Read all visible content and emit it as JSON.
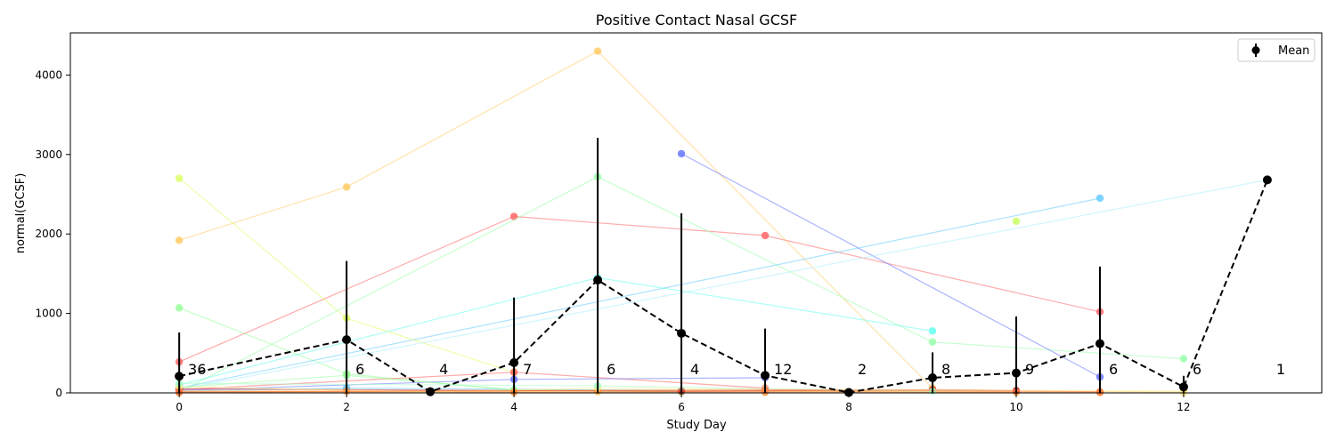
{
  "chart_data": {
    "type": "line",
    "title": "Positive Contact Nasal GCSF",
    "xlabel": "Study Day",
    "ylabel": "normal(GCSF)",
    "xlim": [
      -1.3,
      13.65
    ],
    "ylim": [
      0,
      4530
    ],
    "xticks": [
      0,
      2,
      4,
      6,
      8,
      10,
      12
    ],
    "yticks": [
      0,
      1000,
      2000,
      3000,
      4000
    ],
    "grid": false,
    "legend": {
      "position": "top-right",
      "entries": [
        "Mean"
      ]
    },
    "mean_series": {
      "name": "Mean",
      "color": "#000000",
      "x": [
        0,
        2,
        3,
        4,
        5,
        6,
        7,
        8,
        9,
        10,
        11,
        12,
        13
      ],
      "y": [
        210,
        670,
        15,
        380,
        1420,
        750,
        220,
        5,
        190,
        250,
        620,
        75,
        2680
      ],
      "err": [
        550,
        990,
        0,
        820,
        1790,
        1510,
        590,
        0,
        320,
        710,
        970,
        140,
        0
      ],
      "counts": [
        "36",
        "6",
        "4",
        "7",
        "6",
        "4",
        "12",
        "2",
        "8",
        "9",
        "6",
        "6",
        "1"
      ]
    },
    "subject_series": [
      {
        "color": "#ff6666",
        "x": [
          0,
          4,
          7,
          11
        ],
        "y": [
          390,
          2220,
          1980,
          1020
        ]
      },
      {
        "color": "#ffcc66",
        "x": [
          0,
          2,
          5,
          9
        ],
        "y": [
          1920,
          2590,
          4300,
          60
        ]
      },
      {
        "color": "#99ff99",
        "x": [
          0,
          2,
          4
        ],
        "y": [
          1070,
          240,
          30
        ]
      },
      {
        "color": "#99ffaa",
        "x": [
          0,
          5,
          9,
          12
        ],
        "y": [
          10,
          2720,
          640,
          430
        ]
      },
      {
        "color": "#6677ff",
        "x": [
          6,
          11
        ],
        "y": [
          3010,
          200
        ]
      },
      {
        "color": "#66ccff",
        "x": [
          0,
          11
        ],
        "y": [
          60,
          2450
        ]
      },
      {
        "color": "#66ffee",
        "x": [
          0,
          5,
          9
        ],
        "y": [
          100,
          1450,
          780
        ]
      },
      {
        "color": "#ddff66",
        "x": [
          0,
          2,
          4
        ],
        "y": [
          2700,
          940,
          260
        ]
      },
      {
        "color": "#aaeeff",
        "x": [
          0,
          13
        ],
        "y": [
          40,
          2680
        ]
      },
      {
        "color": "#ccff66",
        "x": [
          10
        ],
        "y": [
          2160
        ]
      },
      {
        "color": "#ff6666",
        "x": [
          0,
          4,
          7
        ],
        "y": [
          40,
          260,
          60
        ]
      },
      {
        "color": "#6677ff",
        "x": [
          0,
          4,
          7
        ],
        "y": [
          30,
          170,
          190
        ]
      },
      {
        "color": "#66ccff",
        "x": [
          0,
          2,
          6
        ],
        "y": [
          20,
          60,
          30
        ]
      },
      {
        "color": "#99ff99",
        "x": [
          0,
          2,
          4,
          6
        ],
        "y": [
          70,
          220,
          40,
          10
        ]
      },
      {
        "color": "#ffcc66",
        "x": [
          0,
          5,
          9,
          12
        ],
        "y": [
          25,
          15,
          30,
          10
        ]
      },
      {
        "color": "#ff8833",
        "x": [
          0,
          4,
          7,
          11
        ],
        "y": [
          15,
          10,
          10,
          5
        ]
      },
      {
        "color": "#ff9933",
        "x": [
          0,
          2,
          5,
          10
        ],
        "y": [
          5,
          20,
          30,
          10
        ]
      },
      {
        "color": "#cc3333",
        "x": [
          0,
          6,
          9,
          10
        ],
        "y": [
          50,
          20,
          40,
          30
        ]
      },
      {
        "color": "#ffee88",
        "x": [
          0,
          3,
          5,
          12
        ],
        "y": [
          80,
          10,
          60,
          20
        ]
      },
      {
        "color": "#aaffcc",
        "x": [
          0,
          5,
          7,
          9
        ],
        "y": [
          120,
          90,
          50,
          20
        ]
      },
      {
        "color": "#ff7744",
        "x": [
          0,
          7,
          11
        ],
        "y": [
          10,
          40,
          15
        ]
      }
    ]
  }
}
